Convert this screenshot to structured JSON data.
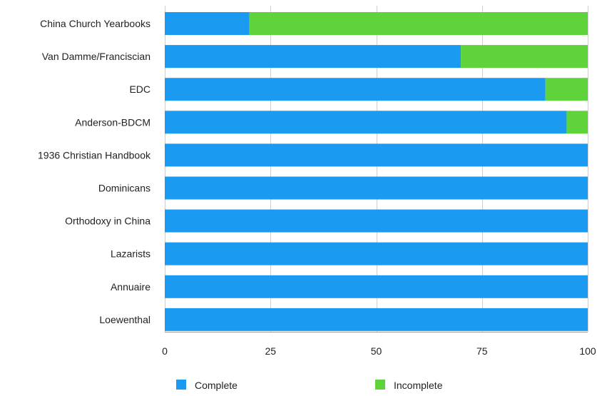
{
  "chart_data": {
    "type": "bar",
    "orientation": "horizontal",
    "stacked": true,
    "categories": [
      "China Church Yearbooks",
      "Van Damme/Franciscian",
      "EDC",
      "Anderson-BDCM",
      "1936 Christian Handbook",
      "Dominicans",
      "Orthodoxy in China",
      "Lazarists",
      "Annuaire",
      "Loewenthal"
    ],
    "series": [
      {
        "name": "Complete",
        "color": "#1a9af0",
        "values": [
          20,
          70,
          90,
          95,
          100,
          100,
          100,
          100,
          100,
          100
        ]
      },
      {
        "name": "Incomplete",
        "color": "#5ed43a",
        "values": [
          80,
          30,
          10,
          5,
          0,
          0,
          0,
          0,
          0,
          0
        ]
      }
    ],
    "xlim": [
      0,
      100
    ],
    "xticks": [
      "0",
      "25",
      "50",
      "75",
      "100"
    ],
    "xtick_values": [
      0,
      25,
      50,
      75,
      100
    ],
    "grid": true,
    "legend_position": "bottom"
  }
}
